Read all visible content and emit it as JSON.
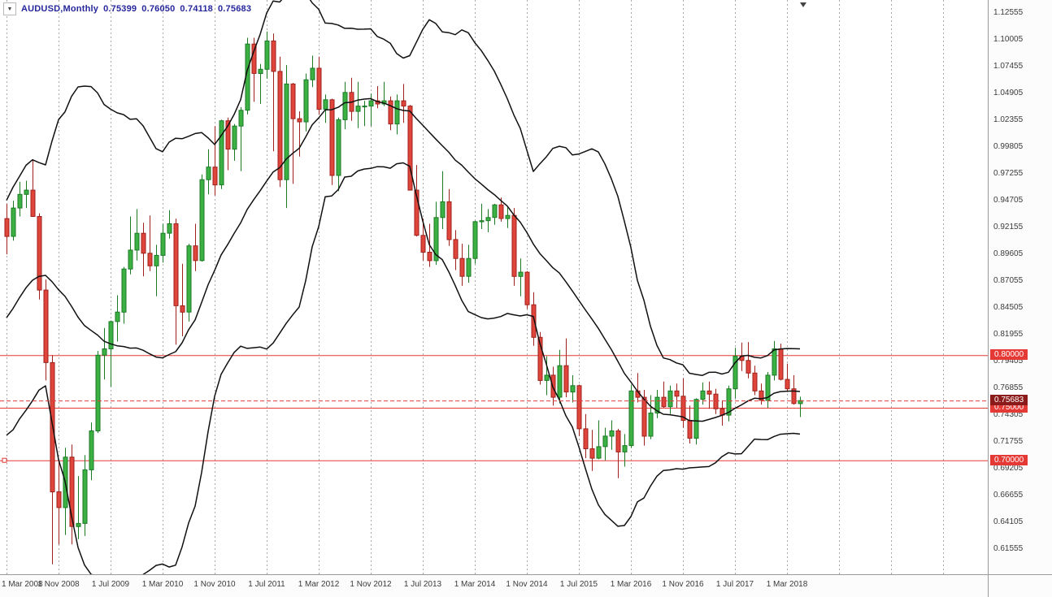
{
  "header": {
    "collapse_icon": "▼",
    "symbol": "AUDUSD,Monthly",
    "open": "0.75399",
    "high": "0.76050",
    "low": "0.74118",
    "close": "0.75683"
  },
  "colors": {
    "background": "#ffffff",
    "grid": "#a6a6a6",
    "up_body": "#3cb043",
    "up_border": "#1a7a24",
    "down_body": "#e0453c",
    "down_border": "#9e211b",
    "band_line": "#101010",
    "hline": "#e53935",
    "price_tag_bg": "#e53935",
    "current_tag_bg": "#8b1a1a",
    "header_text": "#26279b",
    "axis_text": "#3a3a3a"
  },
  "chart_data": {
    "type": "candlestick",
    "symbol": "AUDUSD",
    "timeframe": "Monthly",
    "legend": "Bollinger Bands (20,2) in black; horizontal red levels at 0.80000 / 0.75000 / 0.70000; current bid 0.75683",
    "x_labels": [
      "1 Mar 2008",
      "1 Nov 2008",
      "1 Jul 2009",
      "1 Mar 2010",
      "1 Nov 2010",
      "1 Jul 2011",
      "1 Mar 2012",
      "1 Nov 2012",
      "1 Jul 2013",
      "1 Mar 2014",
      "1 Nov 2014",
      "1 Jul 2015",
      "1 Mar 2016",
      "1 Nov 2016",
      "1 Jul 2017",
      "1 Mar 2018"
    ],
    "x_label_step_bars": 8,
    "y_labels": [
      "1.12555",
      "1.10005",
      "1.07455",
      "1.04905",
      "1.02355",
      "0.99805",
      "0.97255",
      "0.94705",
      "0.92155",
      "0.89605",
      "0.87055",
      "0.84505",
      "0.81955",
      "0.79405",
      "0.76855",
      "0.74305",
      "0.71755",
      "0.69205",
      "0.66655",
      "0.64105",
      "0.61555"
    ],
    "y_label_step": 0.0255,
    "price_at_first_y_label": 1.12555,
    "hlines": [
      {
        "price": 0.8,
        "label": "0.80000",
        "handle": false
      },
      {
        "price": 0.75,
        "label": "0.75000",
        "handle": false
      },
      {
        "price": 0.7,
        "label": "0.70000",
        "handle": true
      }
    ],
    "current_price": {
      "price": 0.75683,
      "label": "0.75683"
    },
    "bollinger": {
      "period": 20,
      "deviation": 2,
      "warmup_closes": [
        0.764,
        0.746,
        0.769,
        0.788,
        0.788,
        0.775,
        0.79,
        0.808,
        0.83,
        0.825,
        0.848,
        0.851,
        0.82,
        0.887,
        0.924,
        0.882,
        0.878,
        0.896,
        0.93
      ]
    },
    "candles": [
      [
        0.93,
        0.944,
        0.896,
        0.913
      ],
      [
        0.913,
        0.947,
        0.909,
        0.94
      ],
      [
        0.94,
        0.965,
        0.932,
        0.953
      ],
      [
        0.953,
        0.966,
        0.94,
        0.957
      ],
      [
        0.957,
        0.985,
        0.95,
        0.932
      ],
      [
        0.932,
        0.935,
        0.853,
        0.862
      ],
      [
        0.862,
        0.872,
        0.776,
        0.793
      ],
      [
        0.793,
        0.8,
        0.601,
        0.67
      ],
      [
        0.67,
        0.7,
        0.62,
        0.655
      ],
      [
        0.655,
        0.712,
        0.629,
        0.703
      ],
      [
        0.703,
        0.715,
        0.62,
        0.637
      ],
      [
        0.637,
        0.685,
        0.625,
        0.64
      ],
      [
        0.64,
        0.705,
        0.628,
        0.691
      ],
      [
        0.691,
        0.736,
        0.681,
        0.728
      ],
      [
        0.728,
        0.804,
        0.726,
        0.8
      ],
      [
        0.8,
        0.826,
        0.777,
        0.806
      ],
      [
        0.806,
        0.833,
        0.77,
        0.832
      ],
      [
        0.832,
        0.857,
        0.813,
        0.841
      ],
      [
        0.841,
        0.884,
        0.83,
        0.882
      ],
      [
        0.882,
        0.932,
        0.877,
        0.9
      ],
      [
        0.9,
        0.939,
        0.89,
        0.916
      ],
      [
        0.916,
        0.926,
        0.875,
        0.897
      ],
      [
        0.897,
        0.933,
        0.88,
        0.885
      ],
      [
        0.885,
        0.905,
        0.856,
        0.895
      ],
      [
        0.895,
        0.925,
        0.888,
        0.916
      ],
      [
        0.916,
        0.938,
        0.911,
        0.925
      ],
      [
        0.925,
        0.93,
        0.81,
        0.847
      ],
      [
        0.847,
        0.887,
        0.818,
        0.841
      ],
      [
        0.841,
        0.906,
        0.832,
        0.904
      ],
      [
        0.904,
        0.925,
        0.88,
        0.89
      ],
      [
        0.89,
        0.972,
        0.889,
        0.967
      ],
      [
        0.967,
        0.996,
        0.953,
        0.979
      ],
      [
        0.979,
        1.018,
        0.952,
        0.962
      ],
      [
        0.962,
        1.024,
        0.958,
        1.023
      ],
      [
        1.023,
        1.026,
        0.976,
        0.996
      ],
      [
        0.996,
        1.02,
        0.985,
        1.018
      ],
      [
        1.018,
        1.036,
        0.975,
        1.033
      ],
      [
        1.033,
        1.102,
        1.029,
        1.096
      ],
      [
        1.096,
        1.102,
        1.041,
        1.068
      ],
      [
        1.068,
        1.077,
        1.039,
        1.072
      ],
      [
        1.072,
        1.108,
        1.063,
        1.099
      ],
      [
        1.099,
        1.106,
        0.994,
        1.07
      ],
      [
        1.07,
        1.084,
        0.96,
        0.967
      ],
      [
        0.967,
        1.076,
        0.94,
        1.058
      ],
      [
        1.058,
        1.059,
        0.963,
        1.025
      ],
      [
        1.025,
        1.032,
        0.989,
        1.022
      ],
      [
        1.022,
        1.068,
        1.013,
        1.062
      ],
      [
        1.062,
        1.085,
        1.055,
        1.073
      ],
      [
        1.073,
        1.084,
        1.029,
        1.034
      ],
      [
        1.034,
        1.048,
        1.021,
        1.043
      ],
      [
        1.043,
        1.044,
        0.962,
        0.971
      ],
      [
        0.971,
        1.026,
        0.956,
        1.024
      ],
      [
        1.024,
        1.06,
        1.015,
        1.05
      ],
      [
        1.05,
        1.064,
        1.023,
        1.032
      ],
      [
        1.032,
        1.06,
        1.016,
        1.037
      ],
      [
        1.037,
        1.042,
        1.018,
        1.037
      ],
      [
        1.037,
        1.049,
        1.018,
        1.042
      ],
      [
        1.042,
        1.056,
        1.035,
        1.039
      ],
      [
        1.039,
        1.06,
        1.037,
        1.042
      ],
      [
        1.042,
        1.046,
        1.014,
        1.02
      ],
      [
        1.02,
        1.048,
        1.01,
        1.042
      ],
      [
        1.042,
        1.058,
        1.021,
        1.037
      ],
      [
        1.037,
        1.038,
        0.957,
        0.957
      ],
      [
        0.957,
        0.981,
        0.913,
        0.914
      ],
      [
        0.914,
        0.93,
        0.89,
        0.898
      ],
      [
        0.898,
        0.925,
        0.884,
        0.89
      ],
      [
        0.89,
        0.946,
        0.886,
        0.931
      ],
      [
        0.931,
        0.975,
        0.92,
        0.946
      ],
      [
        0.946,
        0.958,
        0.904,
        0.91
      ],
      [
        0.91,
        0.919,
        0.881,
        0.892
      ],
      [
        0.892,
        0.906,
        0.866,
        0.875
      ],
      [
        0.875,
        0.905,
        0.869,
        0.892
      ],
      [
        0.892,
        0.928,
        0.887,
        0.927
      ],
      [
        0.927,
        0.944,
        0.92,
        0.928
      ],
      [
        0.928,
        0.939,
        0.917,
        0.931
      ],
      [
        0.931,
        0.944,
        0.924,
        0.943
      ],
      [
        0.943,
        0.95,
        0.927,
        0.93
      ],
      [
        0.93,
        0.941,
        0.921,
        0.933
      ],
      [
        0.933,
        0.94,
        0.866,
        0.875
      ],
      [
        0.875,
        0.892,
        0.856,
        0.879
      ],
      [
        0.879,
        0.88,
        0.844,
        0.848
      ],
      [
        0.848,
        0.86,
        0.809,
        0.817
      ],
      [
        0.817,
        0.822,
        0.772,
        0.776
      ],
      [
        0.776,
        0.799,
        0.762,
        0.781
      ],
      [
        0.781,
        0.789,
        0.752,
        0.76
      ],
      [
        0.76,
        0.805,
        0.754,
        0.79
      ],
      [
        0.79,
        0.816,
        0.76,
        0.765
      ],
      [
        0.765,
        0.781,
        0.755,
        0.771
      ],
      [
        0.771,
        0.772,
        0.723,
        0.73
      ],
      [
        0.73,
        0.744,
        0.702,
        0.711
      ],
      [
        0.711,
        0.729,
        0.69,
        0.702
      ],
      [
        0.702,
        0.738,
        0.701,
        0.713
      ],
      [
        0.713,
        0.731,
        0.7,
        0.723
      ],
      [
        0.723,
        0.738,
        0.71,
        0.728
      ],
      [
        0.728,
        0.73,
        0.683,
        0.708
      ],
      [
        0.708,
        0.725,
        0.694,
        0.714
      ],
      [
        0.714,
        0.772,
        0.712,
        0.766
      ],
      [
        0.766,
        0.783,
        0.755,
        0.76
      ],
      [
        0.76,
        0.767,
        0.714,
        0.723
      ],
      [
        0.723,
        0.762,
        0.72,
        0.745
      ],
      [
        0.745,
        0.767,
        0.74,
        0.76
      ],
      [
        0.76,
        0.775,
        0.75,
        0.751
      ],
      [
        0.751,
        0.771,
        0.744,
        0.766
      ],
      [
        0.766,
        0.773,
        0.75,
        0.761
      ],
      [
        0.761,
        0.778,
        0.731,
        0.738
      ],
      [
        0.738,
        0.752,
        0.716,
        0.721
      ],
      [
        0.721,
        0.759,
        0.715,
        0.758
      ],
      [
        0.758,
        0.774,
        0.753,
        0.766
      ],
      [
        0.766,
        0.775,
        0.749,
        0.763
      ],
      [
        0.763,
        0.768,
        0.744,
        0.749
      ],
      [
        0.749,
        0.757,
        0.733,
        0.743
      ],
      [
        0.743,
        0.771,
        0.737,
        0.768
      ],
      [
        0.768,
        0.807,
        0.759,
        0.799
      ],
      [
        0.799,
        0.812,
        0.785,
        0.795
      ],
      [
        0.795,
        0.8125,
        0.778,
        0.783
      ],
      [
        0.783,
        0.79,
        0.762,
        0.766
      ],
      [
        0.766,
        0.773,
        0.753,
        0.757
      ],
      [
        0.757,
        0.784,
        0.75,
        0.781
      ],
      [
        0.781,
        0.8135,
        0.776,
        0.806
      ],
      [
        0.806,
        0.811,
        0.776,
        0.777
      ],
      [
        0.777,
        0.792,
        0.765,
        0.768
      ],
      [
        0.768,
        0.781,
        0.753,
        0.754
      ],
      [
        0.75399,
        0.7605,
        0.74118,
        0.75683
      ]
    ]
  }
}
